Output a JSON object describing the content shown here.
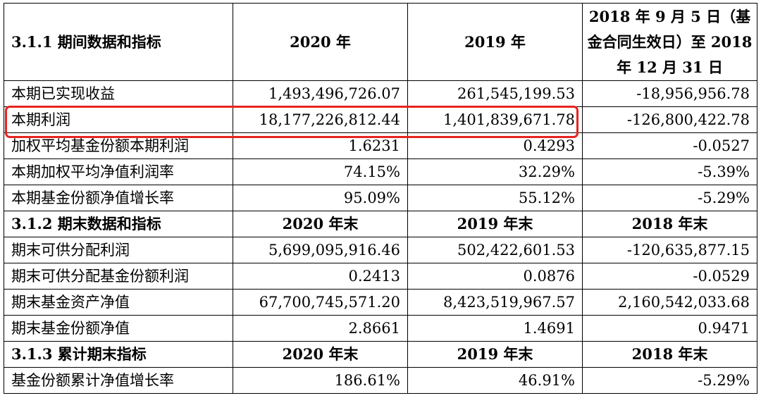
{
  "section1": {
    "heading": "3.1.1 期间数据和指标",
    "col2020": "2020 年",
    "col2019": "2019 年",
    "col2018": "2018 年 9 月 5 日（基金合同生效日）至 2018 年 12 月 31 日",
    "rows": [
      {
        "label": "本期已实现收益",
        "v2020": "1,493,496,726.07",
        "v2019": "261,545,199.53",
        "v2018": "-18,956,956.78"
      },
      {
        "label": "本期利润",
        "v2020": "18,177,226,812.44",
        "v2019": "1,401,839,671.78",
        "v2018": "-126,800,422.78"
      },
      {
        "label": "加权平均基金份额本期利润",
        "v2020": "1.6231",
        "v2019": "0.4293",
        "v2018": "-0.0527"
      },
      {
        "label": "本期加权平均净值利润率",
        "v2020": "74.15%",
        "v2019": "32.29%",
        "v2018": "-5.39%"
      },
      {
        "label": "本期基金份额净值增长率",
        "v2020": "95.09%",
        "v2019": "55.12%",
        "v2018": "-5.29%"
      }
    ]
  },
  "section2": {
    "heading": "3.1.2 期末数据和指标",
    "col2020": "2020 年末",
    "col2019": "2019 年末",
    "col2018": "2018 年末",
    "rows": [
      {
        "label": "期末可供分配利润",
        "v2020": "5,699,095,916.46",
        "v2019": "502,422,601.53",
        "v2018": "-120,635,877.15"
      },
      {
        "label": "期末可供分配基金份额利润",
        "v2020": "0.2413",
        "v2019": "0.0876",
        "v2018": "-0.0529"
      },
      {
        "label": "期末基金资产净值",
        "v2020": "67,700,745,571.20",
        "v2019": "8,423,519,967.57",
        "v2018": "2,160,542,033.68"
      },
      {
        "label": "期末基金份额净值",
        "v2020": "2.8661",
        "v2019": "1.4691",
        "v2018": "0.9471"
      }
    ]
  },
  "section3": {
    "heading": "3.1.3 累计期末指标",
    "col2020": "2020 年末",
    "col2019": "2019 年末",
    "col2018": "2018 年末",
    "rows": [
      {
        "label": "基金份额累计净值增长率",
        "v2020": "186.61%",
        "v2019": "46.91%",
        "v2018": "-5.29%"
      }
    ]
  },
  "highlight_color": "#e8231f"
}
